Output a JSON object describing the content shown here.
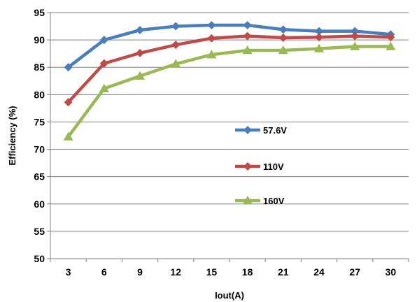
{
  "chart_data": {
    "type": "line",
    "title": "",
    "xlabel": "Iout(A)",
    "ylabel": "Efficiency (%)",
    "categories": [
      3,
      6,
      9,
      12,
      15,
      18,
      21,
      24,
      27,
      30
    ],
    "ylim": [
      50,
      95
    ],
    "yticks": [
      50,
      55,
      60,
      65,
      70,
      75,
      80,
      85,
      90,
      95
    ],
    "grid": true,
    "legend_position": "center-right",
    "series": [
      {
        "name": "57.6V",
        "color": "#4a7ebb",
        "marker": "diamond",
        "values": [
          85.0,
          90.0,
          91.8,
          92.5,
          92.7,
          92.7,
          91.9,
          91.6,
          91.6,
          91.0
        ]
      },
      {
        "name": "110V",
        "color": "#be4b48",
        "marker": "diamond",
        "values": [
          78.6,
          85.7,
          87.6,
          89.1,
          90.3,
          90.7,
          90.4,
          90.5,
          90.7,
          90.5
        ]
      },
      {
        "name": "160V",
        "color": "#98b954",
        "marker": "triangle",
        "values": [
          72.3,
          81.1,
          83.4,
          85.6,
          87.3,
          88.1,
          88.1,
          88.4,
          88.8,
          88.8
        ]
      }
    ]
  }
}
